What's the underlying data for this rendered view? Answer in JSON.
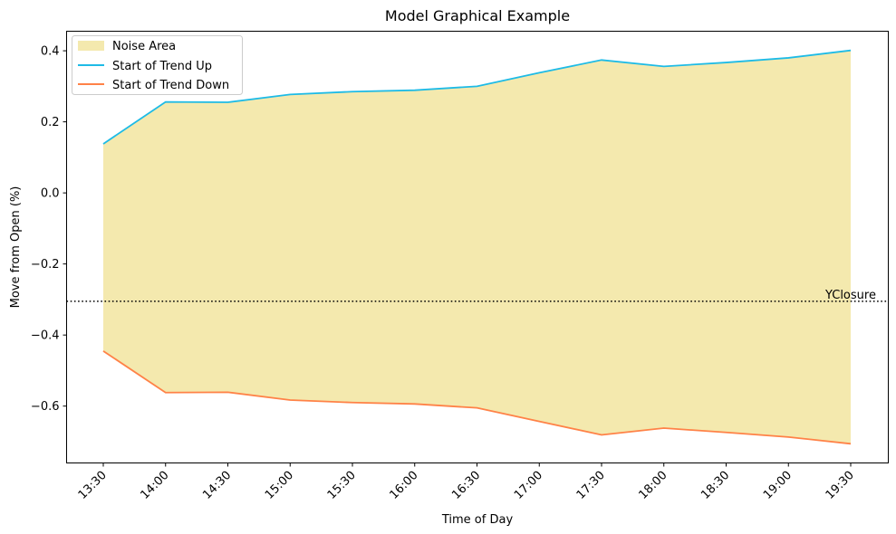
{
  "chart_data": {
    "type": "area",
    "title": "Model Graphical Example",
    "xlabel": "Time of Day",
    "ylabel": "Move from Open (%)",
    "categories": [
      "13:30",
      "14:00",
      "14:30",
      "15:00",
      "15:30",
      "16:00",
      "16:30",
      "17:00",
      "17:30",
      "18:00",
      "18:30",
      "19:00",
      "19:30"
    ],
    "ylim": [
      -0.76,
      0.455
    ],
    "yticks": [
      -0.6,
      -0.4,
      -0.2,
      0.0,
      0.2,
      0.4
    ],
    "ytick_labels": [
      "−0.6",
      "−0.4",
      "−0.2",
      "0.0",
      "0.2",
      "0.4"
    ],
    "series": [
      {
        "name": "Start of Trend Up",
        "color": "#1ebbe6",
        "values": [
          0.138,
          0.256,
          0.255,
          0.277,
          0.285,
          0.289,
          0.3,
          0.338,
          0.374,
          0.356,
          0.367,
          0.38,
          0.401
        ]
      },
      {
        "name": "Start of Trend Down",
        "color": "#ff8247",
        "values": [
          -0.445,
          -0.562,
          -0.561,
          -0.583,
          -0.59,
          -0.594,
          -0.605,
          -0.643,
          -0.681,
          -0.662,
          -0.674,
          -0.687,
          -0.706
        ]
      }
    ],
    "fill": {
      "name": "Noise Area",
      "color": "#eedd82",
      "opacity": 0.65
    },
    "reference_line": {
      "label": "YClosure",
      "y": -0.305,
      "style": "dotted",
      "color": "#000000"
    },
    "legend_position": "upper-left",
    "grid": false
  }
}
